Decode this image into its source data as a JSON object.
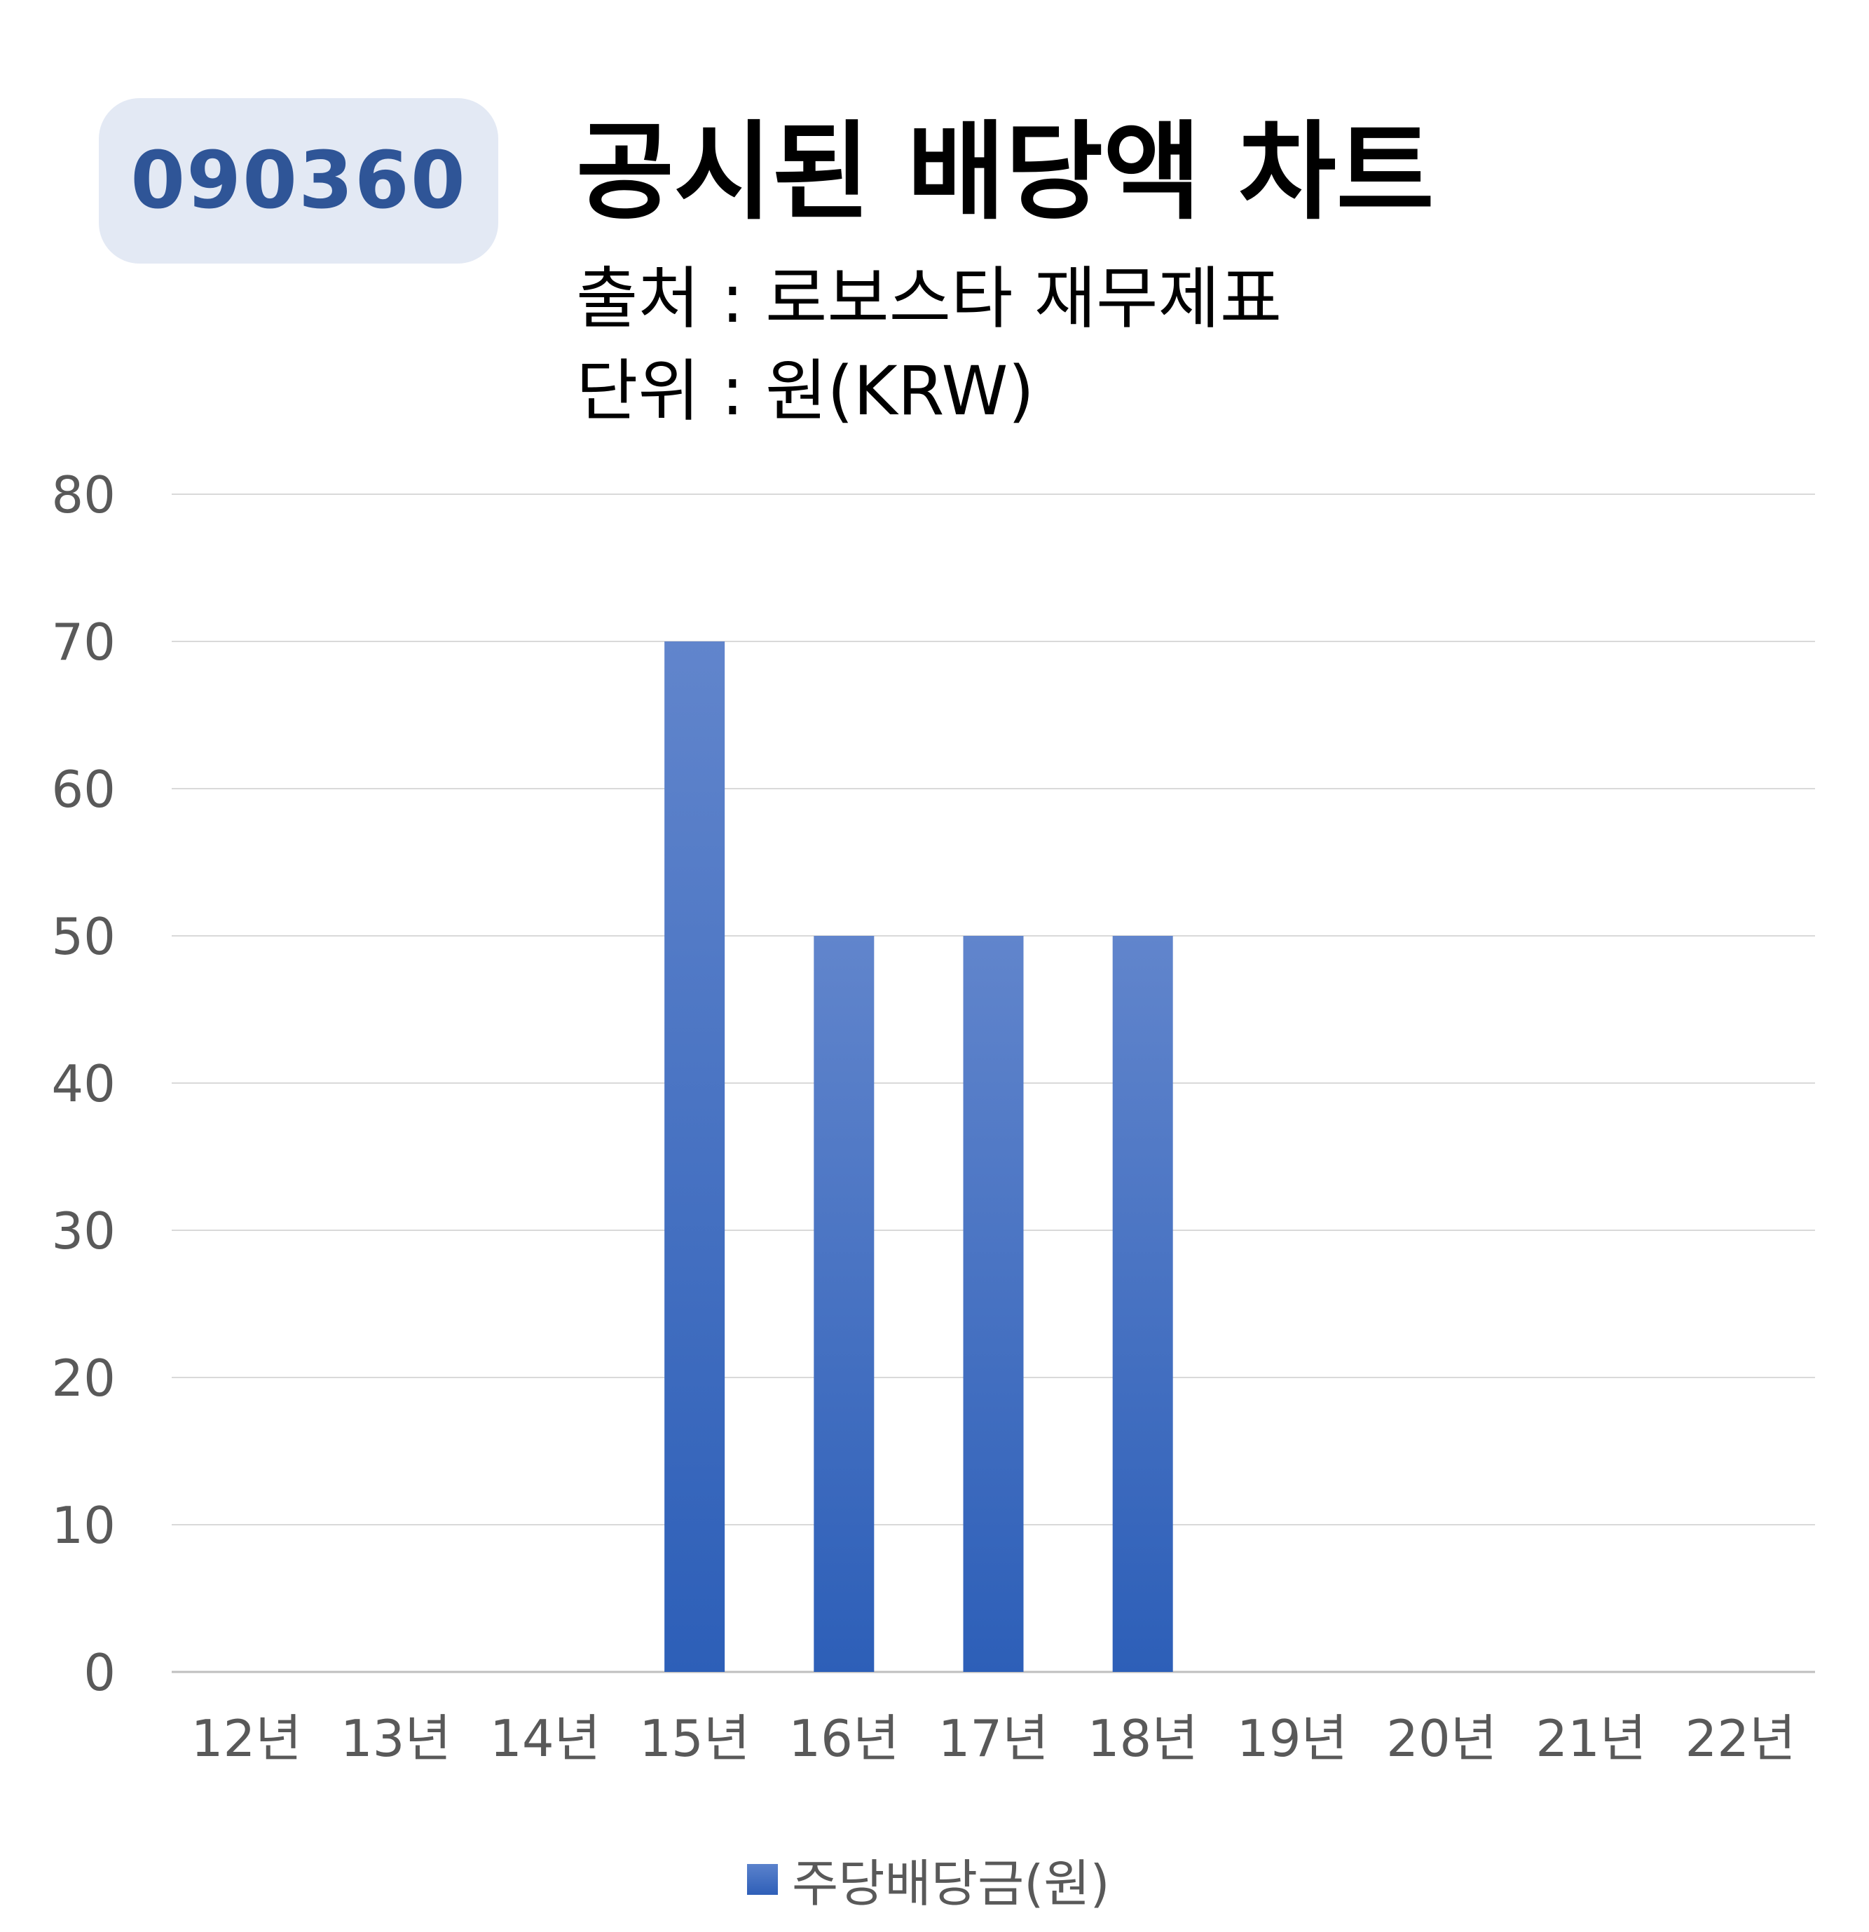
{
  "header": {
    "ticker": "090360",
    "title": "공시된 배당액 차트",
    "source": "출처 : 로보스타 재무제표",
    "unit": "단위 : 원(KRW)"
  },
  "colors": {
    "bar": "#4472c4",
    "badge_bg": "#e3e9f4",
    "badge_text": "#2f5597",
    "grid": "#d9d9d9",
    "axis_text": "#595959"
  },
  "chart_data": {
    "type": "bar",
    "categories": [
      "12년",
      "13년",
      "14년",
      "15년",
      "16년",
      "17년",
      "18년",
      "19년",
      "20년",
      "21년",
      "22년"
    ],
    "series": [
      {
        "name": "주당배당금(원)",
        "values": [
          0,
          0,
          0,
          70,
          50,
          50,
          50,
          0,
          0,
          0,
          0
        ]
      }
    ],
    "yticks": [
      "0",
      "10",
      "20",
      "30",
      "40",
      "50",
      "60",
      "70",
      "80"
    ],
    "ylim": [
      0,
      80
    ],
    "grid": true,
    "legend": "bottom"
  }
}
